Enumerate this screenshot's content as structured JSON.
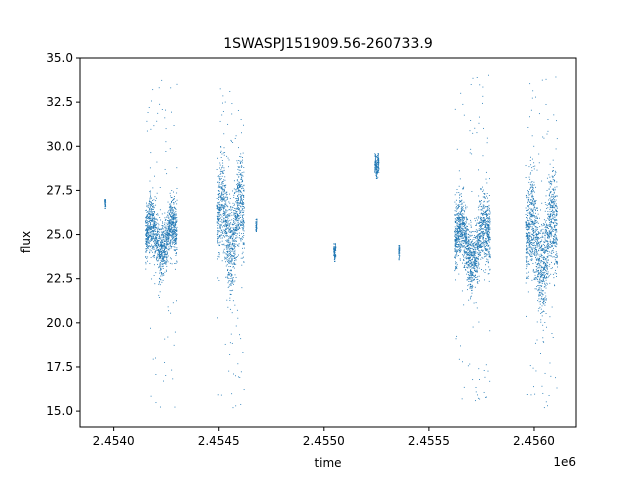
{
  "chart_data": {
    "type": "scatter",
    "title": "1SWASPJ151909.56-260733.9",
    "xlabel": "time",
    "ylabel": "flux",
    "x_offset_label": "1e6",
    "xlim": [
      2453840,
      2456200
    ],
    "ylim": [
      14.1,
      35.0
    ],
    "x_ticks": [
      2454000,
      2454500,
      2455000,
      2455500,
      2456000
    ],
    "x_tick_labels": [
      "2.4540",
      "2.4545",
      "2.4550",
      "2.4555",
      "2.4560"
    ],
    "y_ticks": [
      15.0,
      17.5,
      20.0,
      22.5,
      25.0,
      27.5,
      30.0,
      32.5,
      35.0
    ],
    "y_tick_labels": [
      "15.0",
      "17.5",
      "20.0",
      "22.5",
      "25.0",
      "27.5",
      "30.0",
      "32.5",
      "35.0"
    ],
    "grid": false,
    "marker_color": "#1f77b4",
    "observing_seasons": [
      {
        "time_start": 2453955,
        "time_end": 2453960,
        "flux_center": 26.8,
        "flux_spread": 0.2,
        "flux_min": 26.5,
        "flux_max": 27.0
      },
      {
        "time_start": 2454150,
        "time_end": 2454300,
        "flux_center": 24.8,
        "flux_spread": 1.1,
        "flux_min": 15.2,
        "flux_max": 33.8
      },
      {
        "time_start": 2454490,
        "time_end": 2454620,
        "flux_center": 25.5,
        "flux_spread": 1.8,
        "flux_min": 15.0,
        "flux_max": 33.7
      },
      {
        "time_start": 2454675,
        "time_end": 2454680,
        "flux_center": 25.5,
        "flux_spread": 0.3,
        "flux_min": 25.2,
        "flux_max": 25.9
      },
      {
        "time_start": 2455045,
        "time_end": 2455055,
        "flux_center": 24.0,
        "flux_spread": 0.3,
        "flux_min": 23.5,
        "flux_max": 24.5
      },
      {
        "time_start": 2455240,
        "time_end": 2455260,
        "flux_center": 28.9,
        "flux_spread": 0.4,
        "flux_min": 28.2,
        "flux_max": 29.6
      },
      {
        "time_start": 2455355,
        "time_end": 2455360,
        "flux_center": 24.0,
        "flux_spread": 0.3,
        "flux_min": 23.6,
        "flux_max": 24.4
      },
      {
        "time_start": 2455620,
        "time_end": 2455790,
        "flux_center": 24.5,
        "flux_spread": 1.3,
        "flux_min": 15.4,
        "flux_max": 34.1
      },
      {
        "time_start": 2455960,
        "time_end": 2456110,
        "flux_center": 24.5,
        "flux_spread": 1.9,
        "flux_min": 15.0,
        "flux_max": 34.0
      }
    ]
  }
}
